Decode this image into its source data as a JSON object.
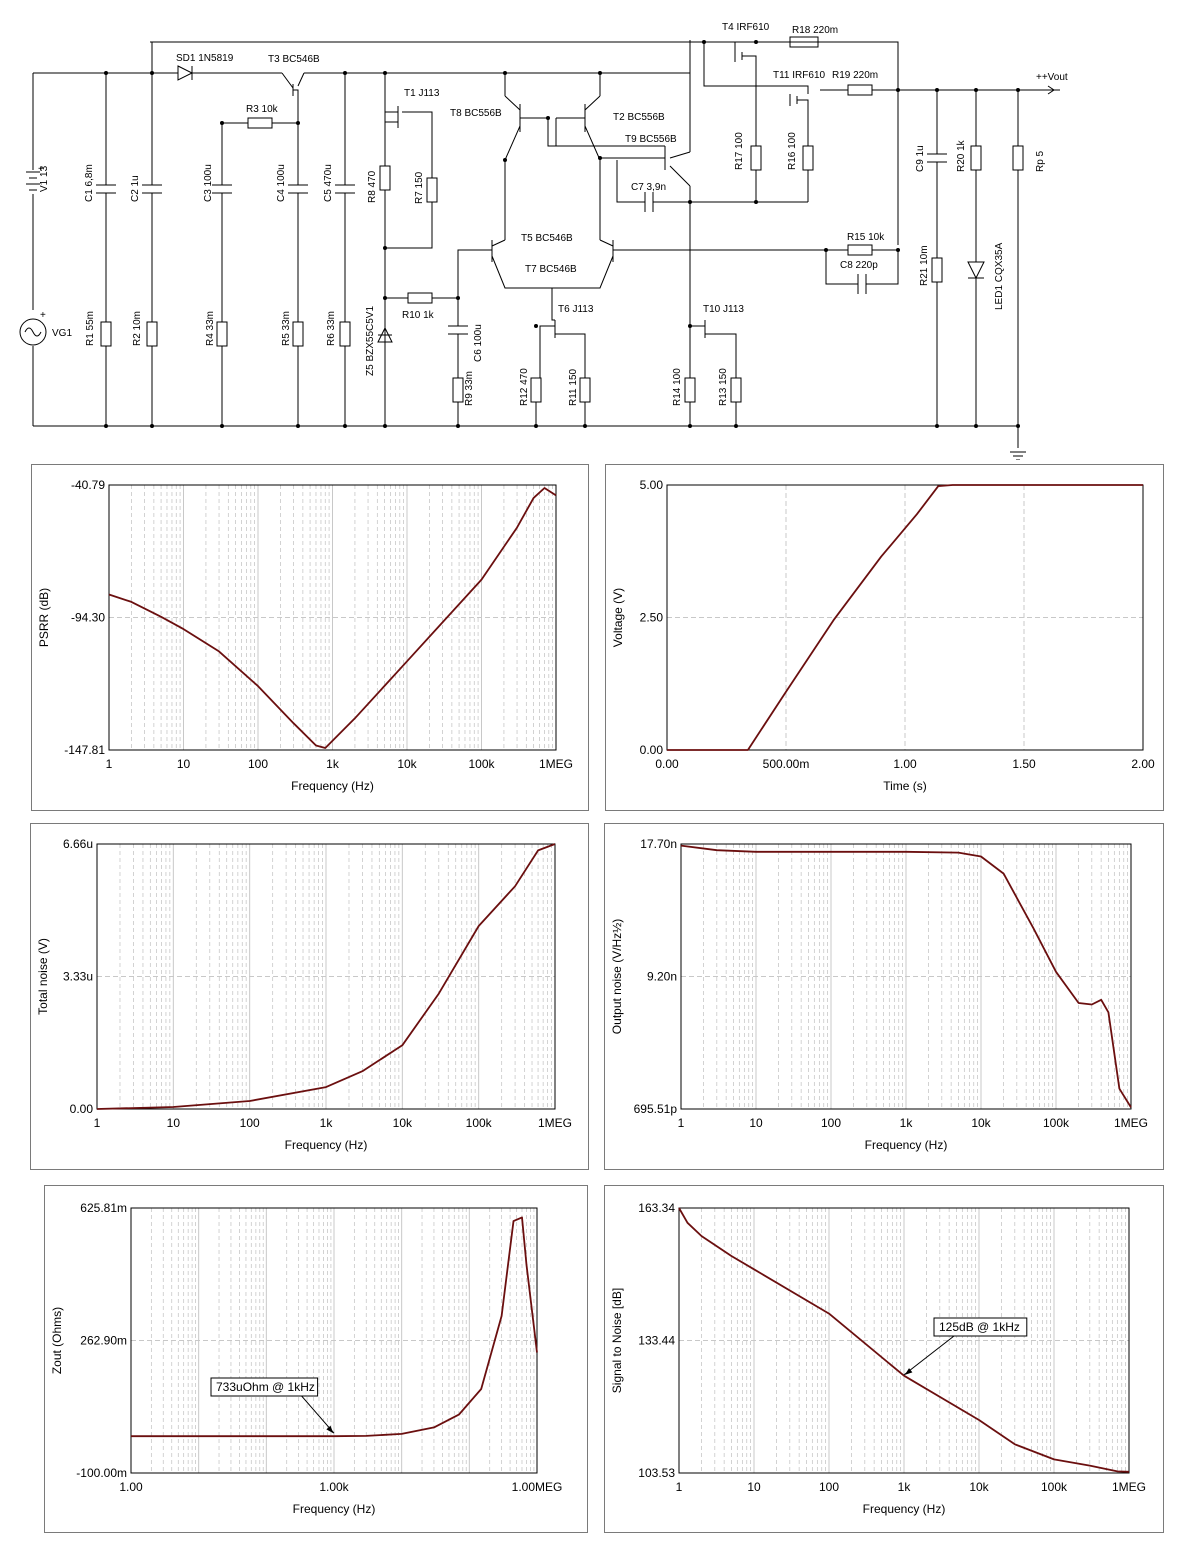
{
  "colors": {
    "curve": "#6b0f0f",
    "grid": "#c8c8c8",
    "frame": "#7a7a7a",
    "wire": "#000000"
  },
  "schematic": {
    "labels": [
      {
        "t": "SD1 1N5819"
      },
      {
        "t": "T3 BC546B"
      },
      {
        "t": "T4 IRF610"
      },
      {
        "t": "R18 220m"
      },
      {
        "t": "T11 IRF610"
      },
      {
        "t": "R19 220m"
      },
      {
        "t": "++Vout"
      },
      {
        "t": "R3 10k"
      },
      {
        "t": "T1 J113"
      },
      {
        "t": "T8 BC556B"
      },
      {
        "t": "T2 BC556B"
      },
      {
        "t": "T9 BC556B"
      },
      {
        "t": "C7 3,9n"
      },
      {
        "t": "R17 100"
      },
      {
        "t": "R16 100"
      },
      {
        "t": "C9 1u"
      },
      {
        "t": "R20 1k"
      },
      {
        "t": "Rp 5"
      },
      {
        "t": "V1 13"
      },
      {
        "t": "C1 6,8m"
      },
      {
        "t": "C2 1u"
      },
      {
        "t": "C3 100u"
      },
      {
        "t": "C4 100u"
      },
      {
        "t": "C5 470u"
      },
      {
        "t": "R8 470"
      },
      {
        "t": "R7 150"
      },
      {
        "t": "T5 BC546B"
      },
      {
        "t": "T7 BC546B"
      },
      {
        "t": "R15 10k"
      },
      {
        "t": "C8 220p"
      },
      {
        "t": "R21 10m"
      },
      {
        "t": "LED1 CQX35A"
      },
      {
        "t": "R10 1k"
      },
      {
        "t": "T6 J113"
      },
      {
        "t": "T10 J113"
      },
      {
        "t": "VG1"
      },
      {
        "t": "R1 55m"
      },
      {
        "t": "R2 10m"
      },
      {
        "t": "R4 33m"
      },
      {
        "t": "R5 33m"
      },
      {
        "t": "R6 33m"
      },
      {
        "t": "Z5 BZX55C5V1"
      },
      {
        "t": "C6 100u"
      },
      {
        "t": "R9 33m"
      },
      {
        "t": "R12 470"
      },
      {
        "t": "R11 150"
      },
      {
        "t": "R14 100"
      },
      {
        "t": "R13 150"
      },
      {
        "t": "+"
      },
      {
        "t": "+"
      }
    ]
  },
  "chart_data": [
    {
      "type": "line",
      "xscale": "log",
      "xlabel": "Frequency (Hz)",
      "ylabel": "PSRR (dB)",
      "xticks": [
        "1",
        "10",
        "100",
        "1k",
        "10k",
        "100k",
        "1MEG"
      ],
      "yticks": [
        "-40.79",
        "-94.30",
        "-147.81"
      ],
      "ylim": [
        -147.81,
        -40.79
      ],
      "xlim": [
        1,
        1000000
      ],
      "series": [
        {
          "x": [
            1,
            2,
            5,
            10,
            30,
            100,
            300,
            600,
            800,
            2000,
            10000,
            100000,
            300000,
            500000,
            700000,
            1000000
          ],
          "y": [
            -85,
            -88,
            -94,
            -99,
            -108,
            -122,
            -137,
            -146,
            -147,
            -135,
            -112,
            -79,
            -58,
            -46,
            -42,
            -45
          ]
        }
      ]
    },
    {
      "type": "line",
      "xscale": "linear",
      "xlabel": "Time (s)",
      "ylabel": "Voltage (V)",
      "xticks": [
        "0.00",
        "500.00m",
        "1.00",
        "1.50",
        "2.00"
      ],
      "yticks": [
        "5.00",
        "2.50",
        "0.00"
      ],
      "ylim": [
        0,
        5
      ],
      "xlim": [
        0,
        2
      ],
      "series": [
        {
          "x": [
            0,
            0.34,
            0.5,
            0.7,
            0.9,
            1.05,
            1.14,
            1.2,
            2.0
          ],
          "y": [
            0,
            0,
            1.1,
            2.45,
            3.65,
            4.45,
            4.98,
            5.0,
            5.0
          ]
        }
      ]
    },
    {
      "type": "line",
      "xscale": "log",
      "xlabel": "Frequency (Hz)",
      "ylabel": "Total noise (V)",
      "xticks": [
        "1",
        "10",
        "100",
        "1k",
        "10k",
        "100k",
        "1MEG"
      ],
      "yticks": [
        "6.66u",
        "3.33u",
        "0.00"
      ],
      "ylim": [
        0,
        6.66
      ],
      "xlim": [
        1,
        1000000
      ],
      "series": [
        {
          "x": [
            1,
            10,
            100,
            1000,
            3000,
            10000,
            30000,
            100000,
            300000,
            600000,
            1000000
          ],
          "y": [
            0,
            0.05,
            0.2,
            0.55,
            0.95,
            1.6,
            2.9,
            4.6,
            5.6,
            6.5,
            6.66
          ]
        }
      ]
    },
    {
      "type": "line",
      "xscale": "log",
      "xlabel": "Frequency (Hz)",
      "ylabel": "Output noise (V/Hz½)",
      "xticks": [
        "1",
        "10",
        "100",
        "1k",
        "10k",
        "100k",
        "1MEG"
      ],
      "yticks": [
        "17.70n",
        "9.20n",
        "695.51p"
      ],
      "ylim": [
        0.69551,
        17.7
      ],
      "xlim": [
        1,
        1000000
      ],
      "series": [
        {
          "x": [
            1,
            3,
            10,
            100,
            1000,
            5000,
            10000,
            20000,
            50000,
            100000,
            200000,
            300000,
            400000,
            500000,
            700000,
            1000000
          ],
          "y": [
            17.6,
            17.3,
            17.2,
            17.2,
            17.2,
            17.15,
            16.9,
            15.8,
            12.3,
            9.5,
            7.5,
            7.4,
            7.7,
            6.9,
            2.0,
            0.8
          ]
        }
      ]
    },
    {
      "type": "line",
      "xscale": "log",
      "xlabel": "Frequency (Hz)",
      "ylabel": "Zout (Ohms)",
      "xticks": [
        "1.00",
        "1.00k",
        "1.00MEG"
      ],
      "yticks": [
        "625.81m",
        "262.90m",
        "-100.00m"
      ],
      "ylim": [
        -100,
        625.81
      ],
      "xlim": [
        1,
        1000000
      ],
      "annotation": {
        "text": "733uOhm @ 1kHz",
        "x": 1000,
        "y": 0.733
      },
      "series": [
        {
          "x": [
            1,
            100,
            1000,
            3000,
            10000,
            30000,
            70000,
            150000,
            300000,
            450000,
            600000,
            700000,
            1000000
          ],
          "y": [
            0.733,
            0.733,
            0.733,
            1.5,
            7,
            25,
            60,
            130,
            330,
            590,
            600,
            470,
            230
          ]
        }
      ]
    },
    {
      "type": "line",
      "xscale": "log",
      "xlabel": "Frequency (Hz)",
      "ylabel": "Signal to Noise [dB]",
      "xticks": [
        "1",
        "10",
        "100",
        "1k",
        "10k",
        "100k",
        "1MEG"
      ],
      "yticks": [
        "163.34",
        "133.44",
        "103.53"
      ],
      "ylim": [
        103.53,
        163.34
      ],
      "xlim": [
        1,
        1000000
      ],
      "annotation": {
        "text": "125dB @ 1kHz",
        "x": 1000,
        "y": 125
      },
      "series": [
        {
          "x": [
            1,
            1.3,
            2,
            5,
            10,
            100,
            1000,
            10000,
            30000,
            100000,
            300000,
            700000,
            1000000
          ],
          "y": [
            163.34,
            160,
            157,
            152.5,
            149.5,
            139.5,
            125.5,
            115.5,
            110,
            106.6,
            105.2,
            103.9,
            103.8
          ]
        }
      ]
    }
  ]
}
